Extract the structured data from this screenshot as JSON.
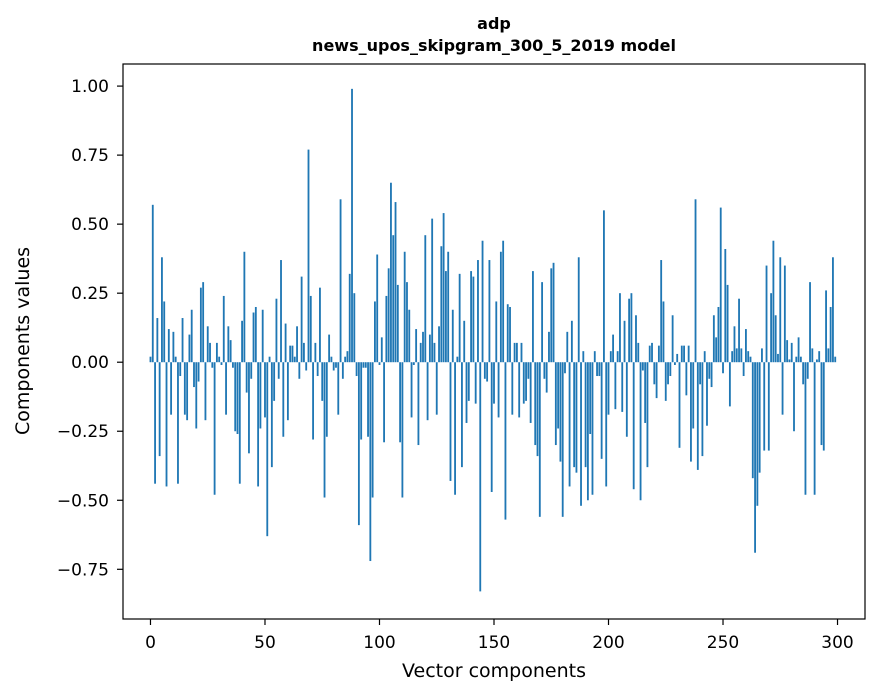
{
  "chart_data": {
    "type": "bar",
    "title": "adp",
    "subtitle": "news_upos_skipgram_300_5_2019 model",
    "xlabel": "Vector components",
    "ylabel": "Components values",
    "xlim": [
      -12,
      312
    ],
    "ylim": [
      -0.93,
      1.08
    ],
    "x_ticks": [
      0,
      50,
      100,
      150,
      200,
      250,
      300
    ],
    "y_ticks": [
      -0.75,
      -0.5,
      -0.25,
      0.0,
      0.25,
      0.5,
      0.75,
      1.0
    ],
    "y_tick_labels": [
      "−0.75",
      "−0.50",
      "−0.25",
      "0.00",
      "0.25",
      "0.50",
      "0.75",
      "1.00"
    ],
    "bar_color": "#1f77b4",
    "grid": false,
    "x": [
      0,
      1,
      2,
      3,
      4,
      5,
      6,
      7,
      8,
      9,
      10,
      11,
      12,
      13,
      14,
      15,
      16,
      17,
      18,
      19,
      20,
      21,
      22,
      23,
      24,
      25,
      26,
      27,
      28,
      29,
      30,
      31,
      32,
      33,
      34,
      35,
      36,
      37,
      38,
      39,
      40,
      41,
      42,
      43,
      44,
      45,
      46,
      47,
      48,
      49,
      50,
      51,
      52,
      53,
      54,
      55,
      56,
      57,
      58,
      59,
      60,
      61,
      62,
      63,
      64,
      65,
      66,
      67,
      68,
      69,
      70,
      71,
      72,
      73,
      74,
      75,
      76,
      77,
      78,
      79,
      80,
      81,
      82,
      83,
      84,
      85,
      86,
      87,
      88,
      89,
      90,
      91,
      92,
      93,
      94,
      95,
      96,
      97,
      98,
      99,
      100,
      101,
      102,
      103,
      104,
      105,
      106,
      107,
      108,
      109,
      110,
      111,
      112,
      113,
      114,
      115,
      116,
      117,
      118,
      119,
      120,
      121,
      122,
      123,
      124,
      125,
      126,
      127,
      128,
      129,
      130,
      131,
      132,
      133,
      134,
      135,
      136,
      137,
      138,
      139,
      140,
      141,
      142,
      143,
      144,
      145,
      146,
      147,
      148,
      149,
      150,
      151,
      152,
      153,
      154,
      155,
      156,
      157,
      158,
      159,
      160,
      161,
      162,
      163,
      164,
      165,
      166,
      167,
      168,
      169,
      170,
      171,
      172,
      173,
      174,
      175,
      176,
      177,
      178,
      179,
      180,
      181,
      182,
      183,
      184,
      185,
      186,
      187,
      188,
      189,
      190,
      191,
      192,
      193,
      194,
      195,
      196,
      197,
      198,
      199,
      200,
      201,
      202,
      203,
      204,
      205,
      206,
      207,
      208,
      209,
      210,
      211,
      212,
      213,
      214,
      215,
      216,
      217,
      218,
      219,
      220,
      221,
      222,
      223,
      224,
      225,
      226,
      227,
      228,
      229,
      230,
      231,
      232,
      233,
      234,
      235,
      236,
      237,
      238,
      239,
      240,
      241,
      242,
      243,
      244,
      245,
      246,
      247,
      248,
      249,
      250,
      251,
      252,
      253,
      254,
      255,
      256,
      257,
      258,
      259,
      260,
      261,
      262,
      263,
      264,
      265,
      266,
      267,
      268,
      269,
      270,
      271,
      272,
      273,
      274,
      275,
      276,
      277,
      278,
      279,
      280,
      281,
      282,
      283,
      284,
      285,
      286,
      287,
      288,
      289,
      290,
      291,
      292,
      293,
      294,
      295,
      296,
      297,
      298,
      299
    ],
    "values": [
      0.02,
      0.57,
      -0.44,
      0.16,
      -0.34,
      0.38,
      0.22,
      -0.45,
      0.12,
      -0.19,
      0.11,
      0.02,
      -0.44,
      -0.05,
      0.16,
      -0.19,
      -0.21,
      0.1,
      0.19,
      -0.09,
      -0.24,
      -0.07,
      0.27,
      0.29,
      -0.21,
      0.13,
      0.07,
      -0.02,
      -0.48,
      0.07,
      0.02,
      -0.01,
      0.24,
      -0.19,
      0.13,
      0.08,
      -0.02,
      -0.25,
      -0.26,
      -0.44,
      0.15,
      0.4,
      -0.11,
      -0.33,
      -0.06,
      0.18,
      0.2,
      -0.45,
      -0.24,
      0.19,
      -0.2,
      -0.63,
      0.02,
      -0.38,
      -0.14,
      0.23,
      -0.06,
      0.37,
      -0.27,
      0.14,
      -0.21,
      0.06,
      0.06,
      0.02,
      0.13,
      -0.06,
      0.31,
      0.07,
      -0.03,
      0.77,
      0.24,
      -0.28,
      0.07,
      -0.05,
      0.27,
      -0.14,
      -0.49,
      -0.27,
      0.1,
      0.02,
      -0.03,
      -0.02,
      -0.19,
      0.59,
      -0.06,
      0.02,
      0.04,
      0.32,
      0.99,
      0.25,
      -0.05,
      -0.59,
      -0.28,
      -0.02,
      -0.02,
      -0.27,
      -0.72,
      -0.49,
      0.22,
      0.39,
      -0.01,
      0.09,
      -0.29,
      0.24,
      0.34,
      0.65,
      0.46,
      0.58,
      0.28,
      -0.29,
      -0.49,
      0.4,
      0.29,
      0.19,
      -0.2,
      -0.01,
      0.12,
      -0.3,
      0.07,
      0.11,
      0.46,
      -0.21,
      0.1,
      0.52,
      0.07,
      -0.19,
      0.13,
      0.42,
      0.54,
      0.33,
      0.4,
      -0.43,
      0.19,
      -0.48,
      0.02,
      0.32,
      -0.38,
      0.15,
      -0.22,
      -0.14,
      0.33,
      0.31,
      -0.15,
      0.37,
      -0.83,
      0.44,
      -0.06,
      -0.07,
      0.37,
      -0.47,
      -0.15,
      0.22,
      -0.2,
      0.4,
      0.44,
      -0.57,
      0.21,
      0.2,
      -0.19,
      0.07,
      0.07,
      -0.2,
      0.07,
      -0.15,
      -0.14,
      -0.06,
      -0.22,
      0.33,
      -0.3,
      -0.34,
      -0.56,
      0.29,
      -0.06,
      -0.11,
      0.11,
      0.34,
      0.36,
      -0.3,
      -0.24,
      -0.36,
      -0.56,
      -0.04,
      0.11,
      -0.45,
      0.15,
      -0.38,
      -0.4,
      0.38,
      -0.52,
      0.04,
      -0.38,
      -0.5,
      -0.26,
      -0.48,
      0.04,
      -0.05,
      -0.05,
      -0.35,
      0.55,
      -0.45,
      -0.19,
      0.04,
      0.1,
      -0.17,
      0.04,
      0.25,
      -0.18,
      0.15,
      -0.27,
      0.23,
      0.25,
      -0.46,
      0.17,
      0.07,
      -0.5,
      -0.03,
      -0.22,
      -0.38,
      0.06,
      0.07,
      -0.08,
      -0.13,
      0.06,
      0.37,
      0.22,
      -0.14,
      -0.08,
      -0.05,
      0.17,
      -0.01,
      0.03,
      -0.31,
      0.06,
      0.06,
      -0.12,
      0.06,
      -0.36,
      -0.24,
      0.59,
      -0.39,
      -0.08,
      -0.34,
      0.04,
      -0.23,
      -0.06,
      -0.09,
      0.17,
      0.09,
      0.2,
      0.56,
      -0.04,
      0.41,
      0.28,
      -0.16,
      0.04,
      0.13,
      0.05,
      0.23,
      0.05,
      -0.05,
      0.12,
      0.04,
      0.02,
      -0.42,
      -0.69,
      -0.52,
      -0.4,
      0.05,
      -0.32,
      0.35,
      -0.32,
      0.25,
      0.44,
      0.17,
      0.03,
      0.38,
      -0.19,
      0.35,
      0.08,
      0.01,
      0.07,
      -0.25,
      0.02,
      0.09,
      0.02,
      -0.08,
      -0.48,
      -0.06,
      0.29,
      0.05,
      -0.48,
      0.01,
      0.04,
      -0.3,
      -0.32,
      0.26,
      0.05,
      0.2,
      0.38,
      0.02
    ],
    "bars_note": "",
    "axes": {}
  }
}
